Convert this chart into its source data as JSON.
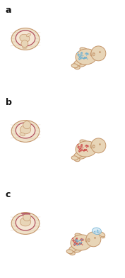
{
  "bg_color": "#ffffff",
  "skin_color": "#e8d5b7",
  "skin_dark": "#d4b896",
  "skin_light": "#f0e2ca",
  "outline_color": "#c4956a",
  "red_outline": "#b05060",
  "blue_dots": "#6ab0d4",
  "red_dots": "#cc4444",
  "label_color": "#111111",
  "label_fontsize": 9,
  "labels": [
    "a",
    "b",
    "c"
  ],
  "figsize": [
    1.77,
    3.92
  ],
  "dpi": 100
}
